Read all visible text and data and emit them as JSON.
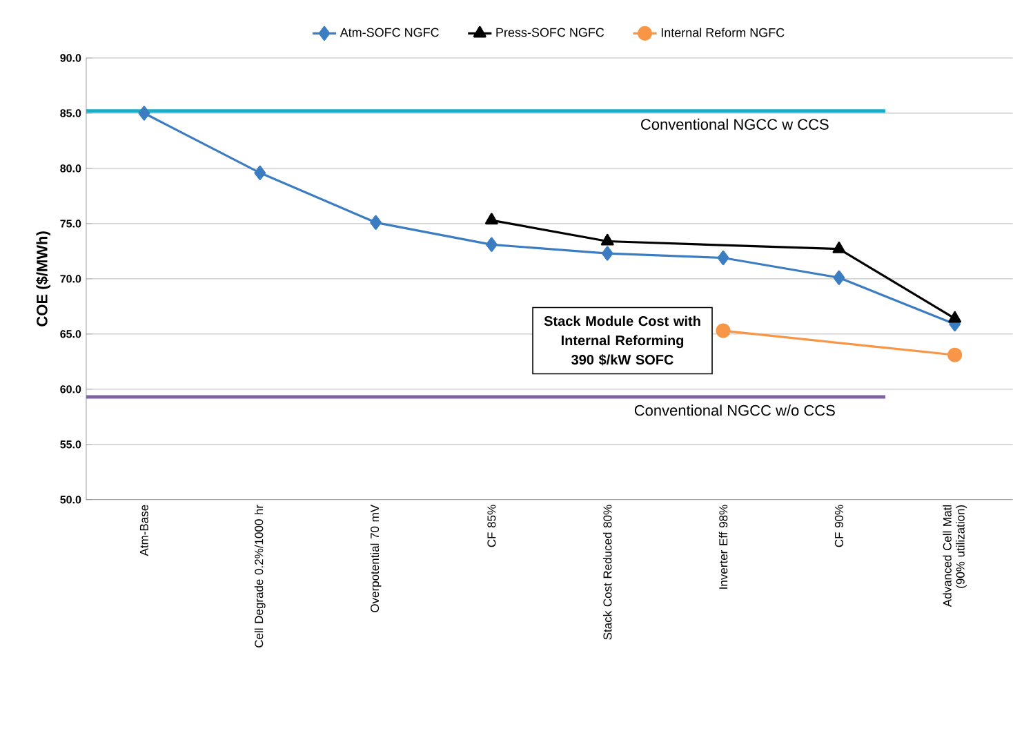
{
  "chart_data": {
    "type": "line",
    "categories": [
      "Atm-Base",
      "Cell Degrade 0.2%/1000 hr",
      "Overpotential 70 mV",
      "CF 85%",
      "Stack Cost Reduced 80%",
      "Inverter Eff 98%",
      "CF 90%",
      "Advanced Cell Matl (90% utilization)"
    ],
    "ylabel": "COE ($/MWh)",
    "ylim": [
      50,
      90
    ],
    "yticks": [
      {
        "value": 50,
        "label": "50.0"
      },
      {
        "value": 55,
        "label": "55.0"
      },
      {
        "value": 60,
        "label": "60.0"
      },
      {
        "value": 65,
        "label": "65.0"
      },
      {
        "value": 70,
        "label": "70.0"
      },
      {
        "value": 75,
        "label": "75.0"
      },
      {
        "value": 80,
        "label": "80.0"
      },
      {
        "value": 85,
        "label": "85.0"
      },
      {
        "value": 90,
        "label": "90.0"
      }
    ],
    "grid": "y",
    "legend": "top",
    "series": [
      {
        "name": "Atm-SOFC NGFC",
        "color": "#3b7dc0",
        "marker": "diamond",
        "values": [
          85.0,
          79.6,
          75.1,
          73.1,
          72.3,
          71.9,
          70.1,
          65.9
        ]
      },
      {
        "name": "Press-SOFC NGFC",
        "color": "#000000",
        "marker": "triangle",
        "values": [
          null,
          null,
          null,
          75.3,
          73.4,
          null,
          72.7,
          66.4
        ]
      },
      {
        "name": "Internal Reform NGFC",
        "color": "#f79646",
        "marker": "circle",
        "values": [
          null,
          null,
          null,
          null,
          null,
          65.3,
          null,
          63.1
        ]
      }
    ],
    "ref_lines": [
      {
        "axis": "y",
        "value": 85.2,
        "label": "Conventional NGCC w CCS",
        "color": "#1aaec6"
      },
      {
        "axis": "y",
        "value": 59.3,
        "label": "Conventional NGCC w/o CCS",
        "color": "#8064a2"
      }
    ],
    "annotations": [
      "Stack Module Cost with Internal Reforming 390 $/kW SOFC"
    ]
  }
}
